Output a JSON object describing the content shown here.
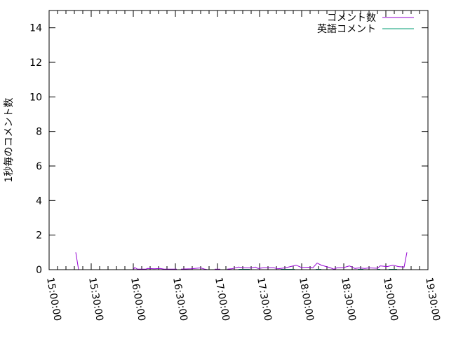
{
  "chart_data": {
    "type": "line",
    "title": "",
    "xlabel": "",
    "ylabel": "1秒毎のコメント数",
    "xlim": [
      "15:00:00",
      "19:30:00"
    ],
    "ylim": [
      0,
      15
    ],
    "xticks": [
      "15:00:00",
      "15:30:00",
      "16:00:00",
      "16:30:00",
      "17:00:00",
      "17:30:00",
      "18:00:00",
      "18:30:00",
      "19:00:00",
      "19:30:00"
    ],
    "yticks": [
      0,
      2,
      4,
      6,
      8,
      10,
      12,
      14
    ],
    "grid": false,
    "legend": "top-right",
    "series": [
      {
        "name": "コメント数",
        "color": "#9400d3",
        "points": [
          [
            "15:19:00",
            1
          ],
          [
            "15:21:00",
            0
          ],
          null,
          [
            "16:00:00",
            0
          ],
          [
            "16:01:00",
            0.12
          ],
          [
            "16:03:00",
            0.03
          ],
          [
            "16:09:00",
            0.03
          ],
          [
            "16:10:00",
            0.07
          ],
          [
            "16:15:00",
            0.05
          ],
          [
            "16:19:00",
            0.07
          ],
          [
            "16:22:00",
            0.03
          ],
          [
            "16:31:00",
            0.03
          ],
          null,
          [
            "16:34:00",
            0.03
          ],
          [
            "16:41:00",
            0.05
          ],
          [
            "16:48:00",
            0.1
          ],
          [
            "16:51:00",
            0.03
          ],
          [
            "16:53:00",
            0
          ],
          null,
          [
            "16:58:00",
            0.03
          ],
          [
            "17:02:00",
            0.03
          ],
          null,
          [
            "17:07:00",
            0.03
          ],
          [
            "17:10:00",
            0.05
          ],
          [
            "17:15:00",
            0.15
          ],
          [
            "17:19:00",
            0.1
          ],
          [
            "17:24:00",
            0.1
          ],
          [
            "17:27:00",
            0.15
          ],
          [
            "17:29:00",
            0.07
          ],
          [
            "17:33:00",
            0.11
          ],
          [
            "17:40:00",
            0.11
          ],
          [
            "17:43:00",
            0.05
          ],
          [
            "17:48:00",
            0.1
          ],
          [
            "17:52:00",
            0.18
          ],
          [
            "17:56:00",
            0.26
          ],
          [
            "18:00:00",
            0.12
          ],
          [
            "18:05:00",
            0.14
          ],
          [
            "18:08:00",
            0.11
          ],
          [
            "18:11:00",
            0.38
          ],
          [
            "18:14:00",
            0.26
          ],
          [
            "18:20:00",
            0.12
          ],
          [
            "18:23:00",
            0.03
          ],
          [
            "18:25:00",
            0.1
          ],
          [
            "18:30:00",
            0.12
          ],
          [
            "18:34:00",
            0.22
          ],
          [
            "18:38:00",
            0.07
          ],
          [
            "18:41:00",
            0.1
          ],
          [
            "18:45:00",
            0.07
          ],
          [
            "18:48:00",
            0.1
          ],
          [
            "18:54:00",
            0.08
          ],
          [
            "18:56:00",
            0.22
          ],
          [
            "19:01:00",
            0.18
          ],
          [
            "19:05:00",
            0.26
          ],
          [
            "19:09:00",
            0.18
          ],
          [
            "19:13:00",
            0.15
          ],
          [
            "19:15:00",
            1
          ]
        ]
      },
      {
        "name": "英語コメント",
        "color": "#009e73",
        "points": [
          [
            "17:15:00",
            0.02
          ],
          [
            "17:23:00",
            0.02
          ],
          null,
          [
            "17:45:00",
            0.02
          ],
          [
            "17:55:00",
            0.02
          ],
          null,
          [
            "18:10:00",
            0.02
          ],
          [
            "18:14:00",
            0.02
          ],
          null,
          [
            "18:40:00",
            0.02
          ],
          [
            "18:44:00",
            0.02
          ],
          null,
          [
            "18:54:00",
            0.02
          ],
          [
            "18:56:00",
            0.02
          ],
          null,
          [
            "19:02:00",
            0.02
          ],
          [
            "19:08:00",
            0.02
          ]
        ]
      }
    ]
  }
}
